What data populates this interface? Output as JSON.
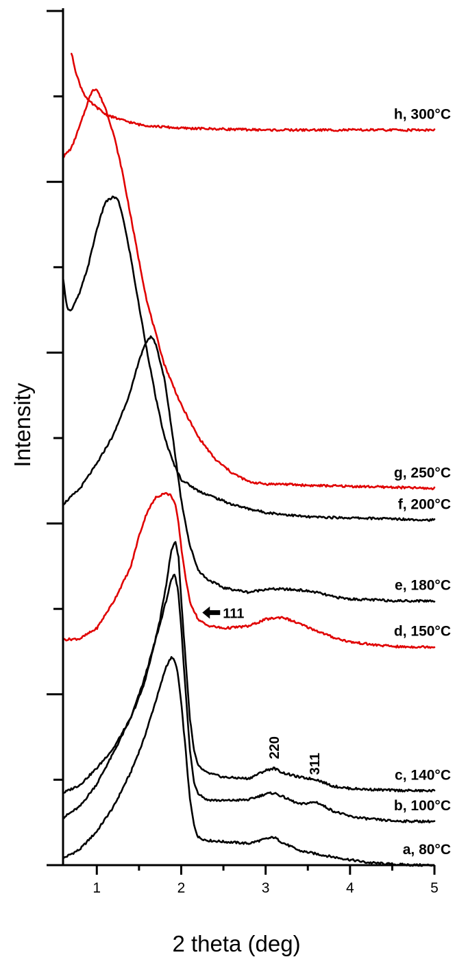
{
  "chart_data": {
    "type": "line",
    "xlabel": "2 theta (deg)",
    "ylabel": "Intensity",
    "xlim": [
      0.6,
      5
    ],
    "xticks": [
      "1",
      "2",
      "3",
      "4",
      "5"
    ],
    "y_tick_labels_shown": false,
    "grid": false,
    "legend": "none (curves labeled directly at right end)",
    "series": [
      {
        "name": "a, 80°C",
        "color": "#000000",
        "x": [
          0.6,
          0.8,
          1.0,
          1.2,
          1.4,
          1.55,
          1.65,
          1.75,
          1.82,
          1.88,
          1.92,
          1.96,
          2.0,
          2.05,
          2.1,
          2.15,
          2.2,
          2.3,
          2.5,
          2.8,
          3.0,
          3.1,
          3.2,
          3.4,
          3.6,
          3.8,
          4.0,
          4.2,
          4.5,
          4.8,
          5.0
        ],
        "y": [
          0.15,
          0.35,
          0.75,
          1.3,
          2.05,
          2.75,
          3.35,
          3.95,
          4.4,
          4.6,
          4.55,
          4.25,
          3.6,
          2.6,
          1.5,
          0.9,
          0.62,
          0.55,
          0.52,
          0.48,
          0.58,
          0.62,
          0.5,
          0.32,
          0.25,
          0.18,
          0.12,
          0.06,
          0.02,
          0.0,
          0.0
        ]
      },
      {
        "name": "b, 100°C",
        "color": "#000000",
        "x": [
          0.6,
          0.8,
          1.0,
          1.2,
          1.4,
          1.55,
          1.65,
          1.75,
          1.82,
          1.88,
          1.92,
          1.96,
          2.0,
          2.05,
          2.1,
          2.15,
          2.2,
          2.3,
          2.5,
          2.8,
          3.0,
          3.1,
          3.2,
          3.4,
          3.6,
          3.8,
          4.0,
          4.2,
          4.5,
          4.8,
          5.0
        ],
        "y": [
          1.05,
          1.3,
          1.8,
          2.5,
          3.25,
          4.05,
          4.7,
          5.35,
          5.85,
          6.3,
          6.45,
          6.15,
          5.3,
          3.9,
          2.6,
          1.85,
          1.6,
          1.45,
          1.43,
          1.45,
          1.58,
          1.6,
          1.52,
          1.35,
          1.4,
          1.2,
          1.08,
          1.03,
          0.98,
          0.97,
          0.97
        ]
      },
      {
        "name": "c, 140°C",
        "color": "#000000",
        "x": [
          0.6,
          0.8,
          1.0,
          1.2,
          1.4,
          1.55,
          1.65,
          1.75,
          1.82,
          1.88,
          1.93,
          1.97,
          2.0,
          2.05,
          2.1,
          2.15,
          2.2,
          2.3,
          2.5,
          2.8,
          3.0,
          3.1,
          3.2,
          3.4,
          3.6,
          3.8,
          4.0,
          4.2,
          4.5,
          4.8,
          5.0
        ],
        "y": [
          1.6,
          1.78,
          2.15,
          2.6,
          3.25,
          3.95,
          4.65,
          5.45,
          6.2,
          6.95,
          7.2,
          6.8,
          5.9,
          4.6,
          3.3,
          2.55,
          2.2,
          2.05,
          1.95,
          1.92,
          2.1,
          2.15,
          2.05,
          1.95,
          1.9,
          1.75,
          1.7,
          1.68,
          1.66,
          1.65,
          1.65
        ]
      },
      {
        "name": "d, 150°C",
        "color": "#e00000",
        "x": [
          0.6,
          0.8,
          1.0,
          1.2,
          1.4,
          1.5,
          1.6,
          1.7,
          1.8,
          1.88,
          1.93,
          1.97,
          2.0,
          2.05,
          2.1,
          2.2,
          2.3,
          2.5,
          2.8,
          3.0,
          3.2,
          3.4,
          3.6,
          3.8,
          4.0,
          4.3,
          4.6,
          5.0
        ],
        "y": [
          5.0,
          5.02,
          5.25,
          5.85,
          6.6,
          7.3,
          7.85,
          8.15,
          8.25,
          8.2,
          8.0,
          7.55,
          7.05,
          6.4,
          5.85,
          5.45,
          5.32,
          5.25,
          5.3,
          5.45,
          5.5,
          5.35,
          5.2,
          5.05,
          4.95,
          4.88,
          4.84,
          4.84
        ]
      },
      {
        "name": "e, 180°C",
        "color": "#000000",
        "x": [
          0.6,
          0.8,
          1.0,
          1.2,
          1.4,
          1.5,
          1.6,
          1.65,
          1.7,
          1.8,
          1.9,
          2.0,
          2.1,
          2.2,
          2.3,
          2.5,
          2.8,
          3.0,
          3.2,
          3.4,
          3.6,
          3.8,
          4.0,
          4.3,
          4.6,
          5.0
        ],
        "y": [
          8.0,
          8.35,
          8.9,
          9.55,
          10.5,
          11.2,
          11.65,
          11.72,
          11.55,
          10.8,
          9.5,
          8.1,
          7.1,
          6.55,
          6.35,
          6.15,
          6.05,
          6.12,
          6.12,
          6.1,
          6.05,
          5.95,
          5.9,
          5.88,
          5.86,
          5.86
        ]
      },
      {
        "name": "f, 200°C",
        "color": "#000000",
        "x": [
          0.6,
          0.65,
          0.7,
          0.75,
          0.8,
          0.9,
          1.0,
          1.1,
          1.2,
          1.25,
          1.3,
          1.4,
          1.5,
          1.6,
          1.7,
          1.8,
          1.9,
          2.0,
          2.2,
          2.4,
          2.6,
          2.8,
          3.0,
          3.2,
          3.5,
          4.0,
          4.5,
          5.0
        ],
        "y": [
          13.0,
          12.35,
          12.3,
          12.5,
          12.7,
          13.3,
          14.1,
          14.7,
          14.82,
          14.75,
          14.45,
          13.5,
          12.4,
          11.35,
          10.35,
          9.5,
          8.95,
          8.55,
          8.3,
          8.15,
          8.0,
          7.9,
          7.82,
          7.78,
          7.72,
          7.7,
          7.68,
          7.65
        ]
      },
      {
        "name": "g, 250°C",
        "color": "#e00000",
        "x": [
          0.6,
          0.7,
          0.8,
          0.9,
          0.95,
          1.0,
          1.05,
          1.1,
          1.2,
          1.3,
          1.4,
          1.5,
          1.6,
          1.8,
          2.0,
          2.2,
          2.4,
          2.6,
          2.8,
          3.0,
          3.2,
          3.5,
          4.0,
          4.5,
          5.0
        ],
        "y": [
          15.7,
          15.9,
          16.4,
          16.95,
          17.2,
          17.2,
          17.0,
          16.8,
          16.2,
          15.4,
          14.4,
          13.4,
          12.45,
          11.1,
          10.2,
          9.5,
          9.0,
          8.7,
          8.5,
          8.45,
          8.45,
          8.42,
          8.4,
          8.38,
          8.35
        ]
      },
      {
        "name": "h, 300°C",
        "color": "#e00000",
        "x": [
          0.7,
          0.75,
          0.8,
          0.85,
          0.9,
          1.0,
          1.1,
          1.2,
          1.3,
          1.5,
          1.7,
          2.0,
          2.5,
          3.0,
          3.5,
          4.0,
          4.5,
          5.0
        ],
        "y": [
          18.0,
          17.6,
          17.3,
          17.1,
          16.95,
          16.8,
          16.65,
          16.58,
          16.52,
          16.42,
          16.38,
          16.34,
          16.32,
          16.3,
          16.3,
          16.3,
          16.3,
          16.3
        ]
      }
    ],
    "annotations": [
      {
        "text": "111",
        "arrow": "left",
        "x": 2.25,
        "y": 5.6
      },
      {
        "text": "220",
        "x": 3.1,
        "y": 2.35,
        "rotation": -90
      },
      {
        "text": "311",
        "x": 3.58,
        "y": 2.0,
        "rotation": -90
      }
    ]
  }
}
